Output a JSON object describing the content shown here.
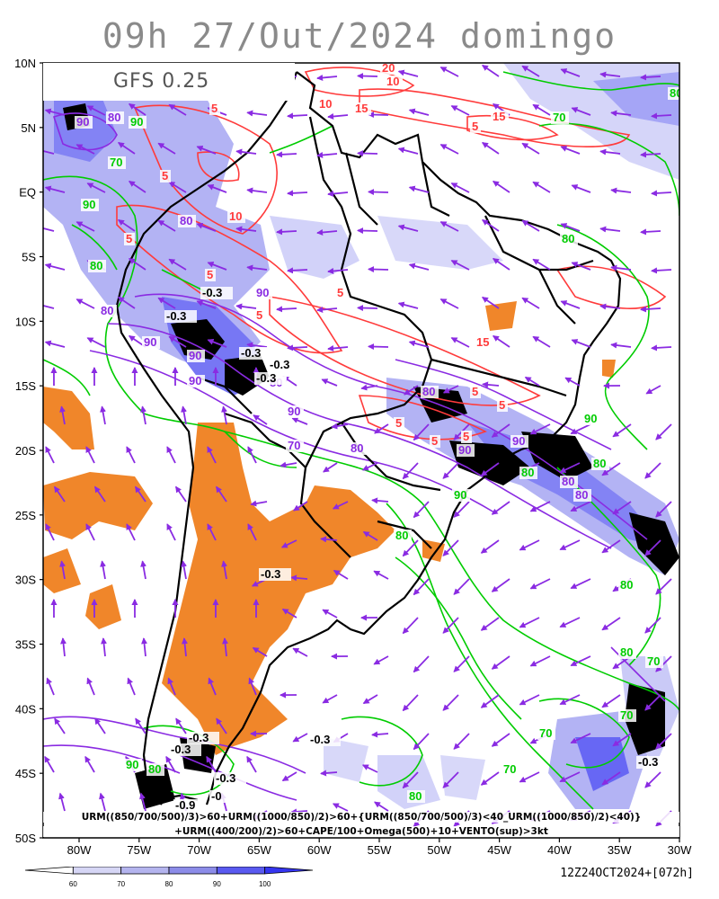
{
  "title": "09h  27/Out/2024  domingo",
  "model_label": "GFS 0.25",
  "caption_line1": "URM((850/700/500)/3)>60+URM((1000/850)/2)>60+{URM((850/700/500)/3)<40_URM((1000/850)/2)<40)}",
  "caption_line2": "+URM((400/200)/2)>60+CAPE/100+Omega(500)+10+VENTO(sup)>3kt",
  "run_stamp": "12Z24OCT2024+[072h]",
  "lat_labels": [
    "10N",
    "5N",
    "EQ",
    "5S",
    "10S",
    "15S",
    "20S",
    "25S",
    "30S",
    "35S",
    "40S",
    "45S",
    "50S"
  ],
  "lon_labels": [
    "80W",
    "75W",
    "70W",
    "65W",
    "60W",
    "55W",
    "50W",
    "45W",
    "40W",
    "35W",
    "30W"
  ],
  "colorbar": {
    "ticks": [
      "60",
      "70",
      "80",
      "90",
      "100"
    ],
    "colors": [
      "#ffffff",
      "#d6d6f5",
      "#b4b4ee",
      "#8c8ce8",
      "#5a5af0",
      "#3535f0"
    ]
  },
  "colors": {
    "wind_vectors": "#8a2be2",
    "humidity_upper": "#8a2be2",
    "humidity_low": "#00cc00",
    "cape": "#ff3b3b",
    "omega": "#000000",
    "dry_fill": "#f0862a",
    "moist_fill": "#9a9af0"
  },
  "contour_labels": {
    "cape": [
      "20",
      "10",
      "5",
      "10",
      "15",
      "5",
      "15",
      "5",
      "10",
      "5",
      "5",
      "5",
      "5",
      "15",
      "5",
      "5",
      "5",
      "5",
      "5"
    ],
    "green": [
      "80",
      "90",
      "70",
      "80",
      "90",
      "80",
      "70",
      "90",
      "80",
      "80",
      "70",
      "80",
      "90",
      "80",
      "80",
      "70",
      "70",
      "70",
      "90",
      "80",
      "80"
    ],
    "purple": [
      "80",
      "90",
      "80",
      "90",
      "80",
      "90",
      "90",
      "90",
      "80",
      "90",
      "80",
      "80",
      "70",
      "90",
      "90",
      "80",
      "80"
    ],
    "omega": [
      "-0.3",
      "-0.3",
      "-0.3",
      "-0.3",
      "-0.3",
      "-0.3",
      "-0.3",
      "-0.3",
      "-0.3",
      "-0.3",
      "-0.9",
      "-0",
      "-0.3"
    ]
  }
}
